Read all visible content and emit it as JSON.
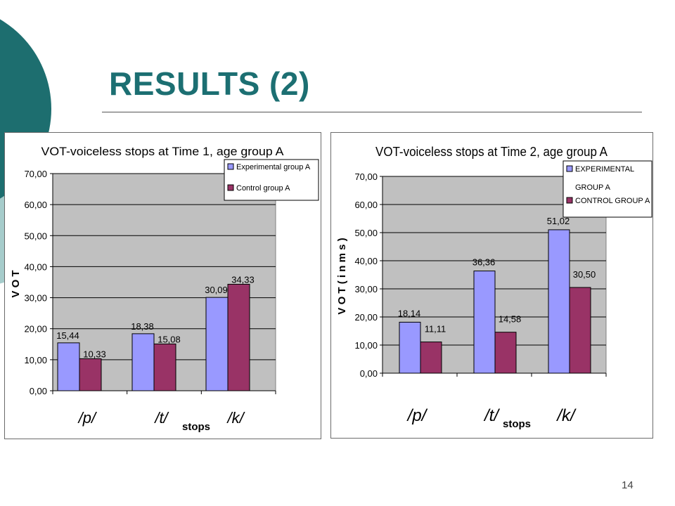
{
  "slide": {
    "title": "RESULTS (2)",
    "page_number": "14",
    "colors": {
      "title": "#1c6f72",
      "deco_dark": "#1d6e6f",
      "deco_light": "#a6cccb",
      "plot_area": "#c0c0c0",
      "experimental_bar": "#9999ff",
      "control_bar": "#993366"
    }
  },
  "chart_data": [
    {
      "type": "bar",
      "title": "VOT-voiceless stops at Time 1, age group A",
      "xlabel": "stops",
      "ylabel": "V O T",
      "categories": [
        "/p/",
        "/t/",
        "/k/"
      ],
      "y_ticks": [
        "0,00",
        "10,00",
        "20,00",
        "30,00",
        "40,00",
        "50,00",
        "60,00",
        "70,00"
      ],
      "ylim": [
        0,
        70
      ],
      "grid": true,
      "legend_position": "top-right",
      "series": [
        {
          "name": "Experimental group A",
          "values": [
            15.44,
            18.38,
            30.09
          ],
          "labels": [
            "15,44",
            "18,38",
            "30,09"
          ],
          "color": "#9999ff"
        },
        {
          "name": "Control group A",
          "values": [
            10.33,
            15.08,
            34.33
          ],
          "labels": [
            "10,33",
            "15,08",
            "34,33"
          ],
          "color": "#993366"
        }
      ]
    },
    {
      "type": "bar",
      "title": "VOT-voiceless stops at Time 2, age group A",
      "xlabel": "stops",
      "ylabel": "V O T  ( i n  m s )",
      "categories": [
        "/p/",
        "/t/",
        "/k/"
      ],
      "y_ticks": [
        "0,00",
        "10,00",
        "20,00",
        "30,00",
        "40,00",
        "50,00",
        "60,00",
        "70,00"
      ],
      "ylim": [
        0,
        70
      ],
      "grid": true,
      "legend_position": "top-right",
      "series": [
        {
          "name": "EXPERIMENTAL GROUP A",
          "name_lines": [
            "EXPERIMENTAL",
            "GROUP A"
          ],
          "values": [
            18.14,
            36.36,
            51.02
          ],
          "labels": [
            "18,14",
            "36,36",
            "51,02"
          ],
          "color": "#9999ff"
        },
        {
          "name": "CONTROL GROUP A",
          "name_lines": [
            "CONTROL GROUP A"
          ],
          "values": [
            11.11,
            14.58,
            30.5
          ],
          "labels": [
            "11,11",
            "14,58",
            "30,50"
          ],
          "color": "#993366"
        }
      ]
    }
  ]
}
